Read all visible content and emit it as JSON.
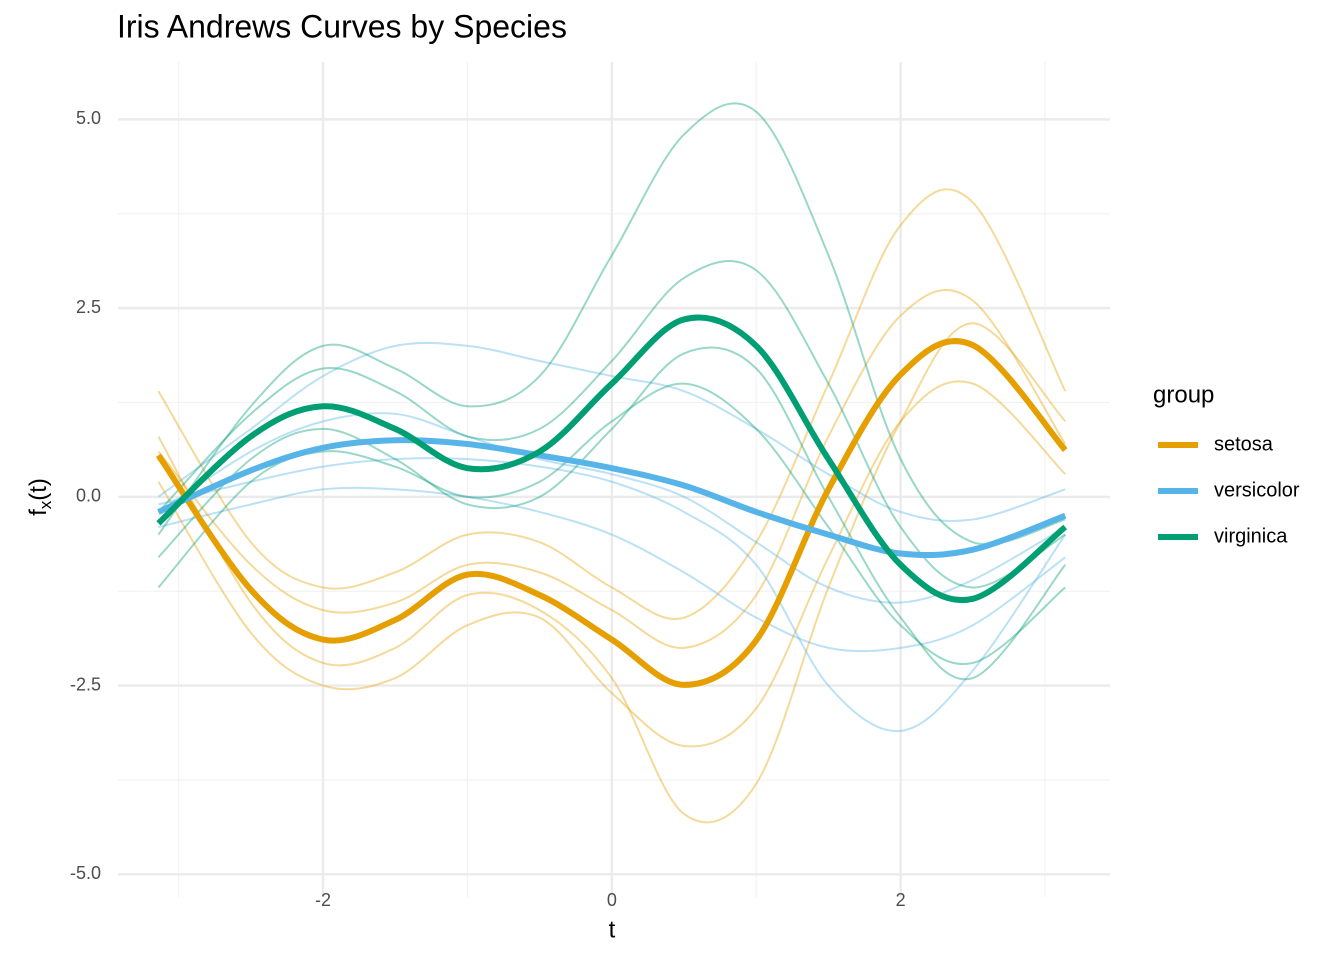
{
  "chart_data": {
    "type": "line",
    "title": "Iris Andrews Curves by Species",
    "xlabel": "t",
    "ylabel_parts": [
      "f",
      "x",
      "(t)"
    ],
    "legend_title": "group",
    "legend": "right",
    "grid": true,
    "x": [
      -3.14,
      -2.5,
      -2,
      -1.5,
      -1,
      -0.5,
      0,
      0.5,
      1,
      1.5,
      2,
      2.5,
      3.14
    ],
    "xlim": [
      -3.42,
      3.45
    ],
    "ylim": [
      -5.3,
      5.76
    ],
    "xticks": [
      -2,
      0,
      2
    ],
    "x_minor_ticks": [
      -3,
      -1,
      1,
      3
    ],
    "yticks": [
      {
        "value": -5,
        "label": "-5.0"
      },
      {
        "value": -2.5,
        "label": "-2.5"
      },
      {
        "value": 0,
        "label": "0.0"
      },
      {
        "value": 2.5,
        "label": "2.5"
      },
      {
        "value": 5,
        "label": "5.0"
      }
    ],
    "y_minor_ticks": [
      -3.75,
      -1.25,
      1.25,
      3.75
    ],
    "series": [
      {
        "name": "setosa",
        "color": "#e69f00",
        "values": [
          0.55,
          -1.23,
          -1.89,
          -1.63,
          -1.03,
          -1.3,
          -1.89,
          -2.49,
          -1.9,
          0.1,
          1.62,
          2.01,
          0.62
        ],
        "members": [
          [
            1.4,
            -0.6,
            -1.2,
            -1.0,
            -0.5,
            -0.6,
            -1.2,
            -1.6,
            -0.6,
            1.5,
            3.6,
            3.9,
            1.4
          ],
          [
            0.2,
            -1.8,
            -2.5,
            -2.4,
            -1.7,
            -1.6,
            -2.6,
            -3.3,
            -2.8,
            -0.8,
            1.0,
            1.5,
            0.3
          ],
          [
            0.8,
            -1.4,
            -2.2,
            -2.0,
            -1.3,
            -1.5,
            -2.4,
            -4.2,
            -3.8,
            -1.2,
            1.0,
            2.3,
            1.0
          ],
          [
            0.6,
            -0.9,
            -1.5,
            -1.4,
            -0.9,
            -1.0,
            -1.5,
            -2.0,
            -1.3,
            0.8,
            2.4,
            2.6,
            0.7
          ]
        ]
      },
      {
        "name": "versicolor",
        "color": "#56b4e9",
        "values": [
          -0.2,
          0.35,
          0.65,
          0.75,
          0.7,
          0.55,
          0.38,
          0.15,
          -0.2,
          -0.5,
          -0.75,
          -0.7,
          -0.25
        ],
        "members": [
          [
            0.0,
            0.9,
            1.6,
            2.0,
            2.0,
            1.8,
            1.6,
            1.4,
            0.9,
            0.3,
            -0.2,
            -0.3,
            0.1
          ],
          [
            -0.4,
            -0.1,
            0.1,
            0.1,
            0.0,
            -0.2,
            -0.5,
            -1.0,
            -1.6,
            -2.0,
            -2.0,
            -1.7,
            -0.8
          ],
          [
            -0.2,
            0.6,
            1.0,
            1.1,
            0.8,
            0.5,
            0.3,
            0.0,
            -0.6,
            -1.2,
            -1.4,
            -1.1,
            -0.4
          ],
          [
            -0.1,
            0.2,
            0.4,
            0.5,
            0.5,
            0.4,
            0.2,
            -0.2,
            -0.9,
            -2.5,
            -3.1,
            -2.3,
            -0.5
          ]
        ]
      },
      {
        "name": "virginica",
        "color": "#009e73",
        "values": [
          -0.35,
          0.8,
          1.2,
          0.9,
          0.38,
          0.6,
          1.5,
          2.35,
          2.0,
          0.5,
          -0.9,
          -1.35,
          -0.4
        ],
        "members": [
          [
            -0.5,
            1.2,
            2.0,
            1.7,
            1.2,
            1.6,
            3.2,
            4.8,
            5.1,
            3.2,
            0.5,
            -0.6,
            -0.3
          ],
          [
            -1.2,
            0.2,
            0.6,
            0.4,
            0.0,
            0.2,
            1.0,
            1.5,
            0.9,
            -0.4,
            -1.7,
            -2.2,
            -1.2
          ],
          [
            -0.2,
            1.1,
            1.7,
            1.4,
            0.8,
            0.9,
            1.8,
            2.9,
            3.0,
            1.5,
            -0.4,
            -1.2,
            -0.5
          ],
          [
            -0.8,
            0.5,
            0.9,
            0.5,
            -0.1,
            0.0,
            0.9,
            1.9,
            1.7,
            0.0,
            -1.6,
            -2.4,
            -0.9
          ]
        ]
      }
    ]
  }
}
